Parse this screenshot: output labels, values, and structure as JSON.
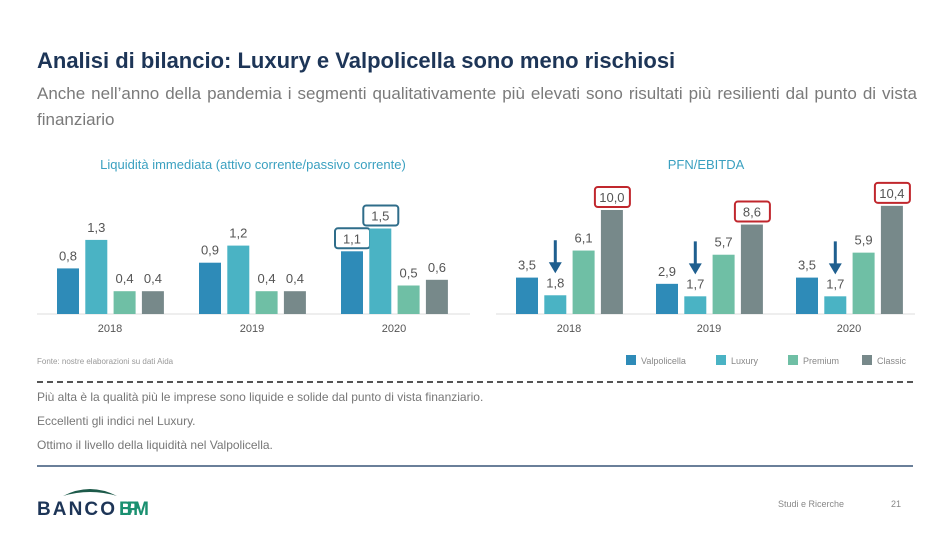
{
  "header": {
    "title": "Analisi di bilancio: Luxury e Valpolicella sono meno rischiosi",
    "subtitle": "Anche nell’anno della pandemia i segmenti qualitativamente più elevati sono risultati più resilienti dal punto di vista finanziario"
  },
  "colors": {
    "Valpolicella": "#2e8bb8",
    "Luxury": "#4ab3c4",
    "Premium": "#6fbfa5",
    "Classic": "#77898a",
    "highlight_blue": "#2f6d8a",
    "highlight_red": "#c0272d",
    "arrow": "#1f5f8f"
  },
  "chart_data": [
    {
      "type": "bar",
      "title": "Liquidità immediata (attivo corrente/passivo corrente)",
      "categories": [
        "2018",
        "2019",
        "2020"
      ],
      "series": [
        {
          "name": "Valpolicella",
          "values": [
            0.8,
            0.9,
            1.1
          ]
        },
        {
          "name": "Luxury",
          "values": [
            1.3,
            1.2,
            1.5
          ]
        },
        {
          "name": "Premium",
          "values": [
            0.4,
            0.4,
            0.5
          ]
        },
        {
          "name": "Classic",
          "values": [
            0.4,
            0.4,
            0.6
          ]
        }
      ],
      "labels": [
        [
          "0,8",
          "1,3",
          "0,4",
          "0,4"
        ],
        [
          "0,9",
          "1,2",
          "0,4",
          "0,4"
        ],
        [
          "1,1",
          "1,5",
          "0,5",
          "0,6"
        ]
      ],
      "highlighted": [
        [
          2,
          0
        ],
        [
          2,
          1
        ]
      ],
      "highlight_color": "blue"
    },
    {
      "type": "bar",
      "title": "PFN/EBITDA",
      "categories": [
        "2018",
        "2019",
        "2020"
      ],
      "series": [
        {
          "name": "Valpolicella",
          "values": [
            3.5,
            2.9,
            3.5
          ]
        },
        {
          "name": "Luxury",
          "values": [
            1.8,
            1.7,
            1.7
          ]
        },
        {
          "name": "Premium",
          "values": [
            6.1,
            5.7,
            5.9
          ]
        },
        {
          "name": "Classic",
          "values": [
            10.0,
            8.6,
            10.4
          ]
        }
      ],
      "labels": [
        [
          "3,5",
          "1,8",
          "6,1",
          "10,0"
        ],
        [
          "2,9",
          "1,7",
          "5,7",
          "8,6"
        ],
        [
          "3,5",
          "1,7",
          "5,9",
          "10,4"
        ]
      ],
      "highlighted": [
        [
          0,
          3
        ],
        [
          1,
          3
        ],
        [
          2,
          3
        ]
      ],
      "highlight_color": "red",
      "arrows_on": "Luxury",
      "legend": "bottom-right"
    }
  ],
  "source": "Fonte: nostre elaborazioni su dati Aida",
  "legend": [
    "Valpolicella",
    "Luxury",
    "Premium",
    "Classic"
  ],
  "bullets": [
    "Più alta è la qualità più le imprese sono liquide e solide dal punto di vista finanziario.",
    "Eccellenti gli indici nel Luxury.",
    "Ottimo il livello della liquidità nel Valpolicella."
  ],
  "footer": {
    "logo": "BANCO BPM",
    "section": "Studi e Ricerche",
    "page": "21"
  }
}
